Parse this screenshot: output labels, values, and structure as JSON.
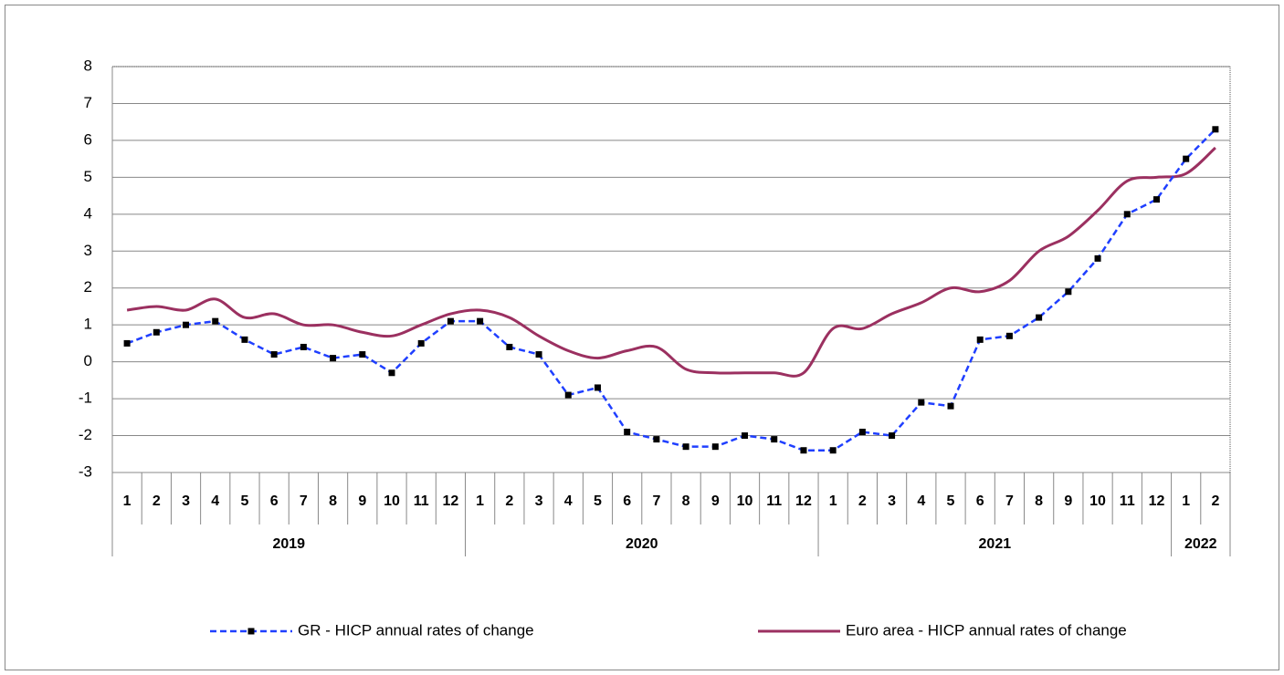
{
  "chart_data": {
    "type": "line",
    "categories": [
      "1",
      "2",
      "3",
      "4",
      "5",
      "6",
      "7",
      "8",
      "9",
      "10",
      "11",
      "12",
      "1",
      "2",
      "3",
      "4",
      "5",
      "6",
      "7",
      "8",
      "9",
      "10",
      "11",
      "12",
      "1",
      "2",
      "3",
      "4",
      "5",
      "6",
      "7",
      "8",
      "9",
      "10",
      "11",
      "12",
      "1",
      "2"
    ],
    "x_groups": [
      "2019",
      "2020",
      "2021",
      "2022"
    ],
    "series": [
      {
        "name": "GR - HICP annual rates of change",
        "color": "#1f3fff",
        "dashed": true,
        "markers": true,
        "values": [
          0.5,
          0.8,
          1.0,
          1.1,
          0.6,
          0.2,
          0.4,
          0.1,
          0.2,
          -0.3,
          0.5,
          1.1,
          1.1,
          0.4,
          0.2,
          -0.9,
          -0.7,
          -1.9,
          -2.1,
          -2.3,
          -2.3,
          -2.0,
          -2.1,
          -2.4,
          -2.4,
          -1.9,
          -2.0,
          -1.1,
          -1.2,
          0.6,
          0.7,
          1.2,
          1.9,
          2.8,
          4.0,
          4.4,
          5.5,
          6.3
        ]
      },
      {
        "name": "Euro area - HICP annual rates of change",
        "color": "#9b3060",
        "dashed": false,
        "markers": false,
        "smooth": true,
        "values": [
          1.4,
          1.5,
          1.4,
          1.7,
          1.2,
          1.3,
          1.0,
          1.0,
          0.8,
          0.7,
          1.0,
          1.3,
          1.4,
          1.2,
          0.7,
          0.3,
          0.1,
          0.3,
          0.4,
          -0.2,
          -0.3,
          -0.3,
          -0.3,
          -0.3,
          0.9,
          0.9,
          1.3,
          1.6,
          2.0,
          1.9,
          2.2,
          3.0,
          3.4,
          4.1,
          4.9,
          5.0,
          5.1,
          5.8
        ]
      }
    ],
    "ylim": [
      -3,
      8
    ],
    "yticks": [
      -3,
      -2,
      -1,
      0,
      1,
      2,
      3,
      4,
      5,
      6,
      7,
      8
    ],
    "grid": true
  }
}
